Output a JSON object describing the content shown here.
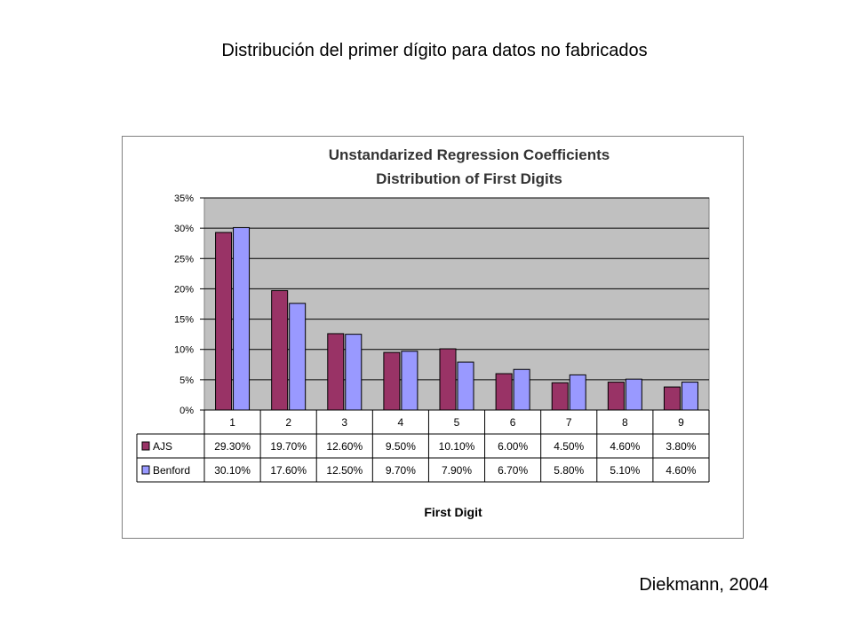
{
  "slide": {
    "title": "Distribución del primer dígito para datos no fabricados",
    "credit": "Diekmann, 2004"
  },
  "chart_data": {
    "type": "bar",
    "title": "Unstandarized Regression Coefficients",
    "subtitle": "Distribution of First Digits",
    "xlabel": "First Digit",
    "ylabel": "",
    "ylim": [
      0,
      35
    ],
    "yticks": [
      "0%",
      "5%",
      "10%",
      "15%",
      "20%",
      "25%",
      "30%",
      "35%"
    ],
    "grid": true,
    "legend": "data-table",
    "categories": [
      "1",
      "2",
      "3",
      "4",
      "5",
      "6",
      "7",
      "8",
      "9"
    ],
    "series": [
      {
        "name": "AJS",
        "color": "#993366",
        "values": [
          29.3,
          19.7,
          12.6,
          9.5,
          10.1,
          6.0,
          4.5,
          4.6,
          3.8
        ],
        "labels": [
          "29.30%",
          "19.70%",
          "12.60%",
          "9.50%",
          "10.10%",
          "6.00%",
          "4.50%",
          "4.60%",
          "3.80%"
        ]
      },
      {
        "name": "Benford",
        "color": "#9999ff",
        "values": [
          30.1,
          17.6,
          12.5,
          9.7,
          7.9,
          6.7,
          5.8,
          5.1,
          4.6
        ],
        "labels": [
          "30.10%",
          "17.60%",
          "12.50%",
          "9.70%",
          "7.90%",
          "6.70%",
          "5.80%",
          "5.10%",
          "4.60%"
        ]
      }
    ],
    "plot_background": "#c0c0c0"
  }
}
